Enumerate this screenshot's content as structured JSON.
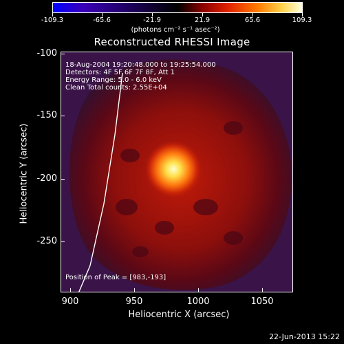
{
  "colorbar": {
    "ticks": [
      "-109.3",
      "-65.6",
      "-21.9",
      "21.9",
      "65.6",
      "109.3"
    ],
    "units_label": "(photons cm⁻² s⁻¹ asec⁻²)"
  },
  "plot": {
    "title": "Reconstructed RHESSI Image",
    "xlabel": "Heliocentric X (arcsec)",
    "ylabel": "Heliocentric Y (arcsec)",
    "xticks": [
      "900",
      "950",
      "1000",
      "1050"
    ],
    "yticks": [
      "-100",
      "-150",
      "-200",
      "-250"
    ],
    "info": {
      "time_range": "18-Aug-2004 19:20:48.000 to 19:25:54.000",
      "detectors": "Detectors: 4F 5F 6F 7F 8F, Att 1",
      "energy": "Energy Range: 5.0 - 6.0 keV",
      "clean": "Clean    Total counts: 2.55E+04",
      "peak": "Position of Peak = [983,-193]"
    }
  },
  "footer": {
    "timestamp": "22-Jun-2013 15:22"
  }
}
